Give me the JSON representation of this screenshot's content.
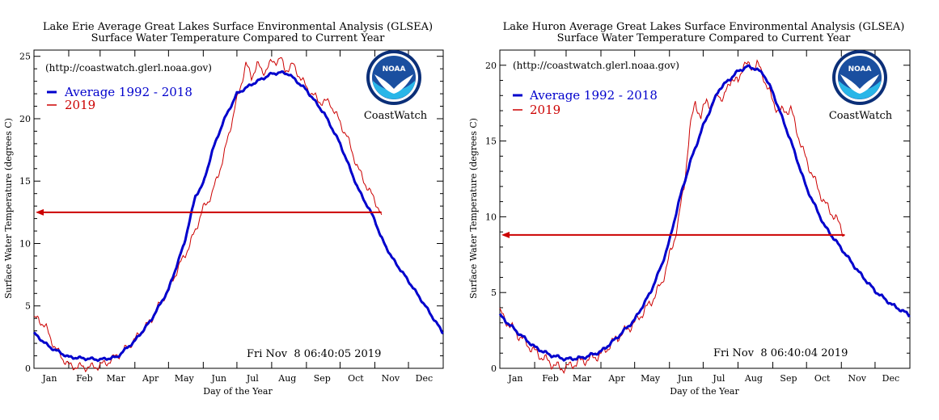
{
  "chart_data": [
    {
      "type": "line",
      "title": "Lake Erie Average Great Lakes Surface Environmental Analysis (GLSEA)",
      "subtitle": "Surface Water Temperature Compared to Current Year",
      "url": "(http://coastwatch.glerl.noaa.gov)",
      "xlabel": "Day of the Year",
      "ylabel": "Surface Water Temperature (degrees C)",
      "xlim": [
        1,
        366
      ],
      "ylim": [
        0,
        25.5
      ],
      "yticks": [
        0,
        5,
        10,
        15,
        20,
        25
      ],
      "ytick_labels": [
        "0",
        "5",
        "10",
        "15",
        "20",
        "25"
      ],
      "month_ticks": [
        1,
        32,
        60,
        91,
        121,
        152,
        182,
        213,
        244,
        274,
        305,
        335
      ],
      "month_labels": [
        "Jan",
        "Feb",
        "Mar",
        "Apr",
        "May",
        "Jun",
        "Jul",
        "Aug",
        "Sep",
        "Oct",
        "Nov",
        "Dec"
      ],
      "timestamp": "Fri Nov  8 06:40:05 2019",
      "logo_text": "NOAA",
      "logo_caption": "CoastWatch",
      "series": [
        {
          "name": "Average 1992 - 2018",
          "color": "#0000cc",
          "x": [
            1,
            15,
            32,
            45,
            60,
            75,
            91,
            105,
            121,
            135,
            145,
            152,
            160,
            170,
            182,
            196,
            213,
            221,
            228,
            244,
            260,
            274,
            290,
            305,
            310,
            320,
            335,
            350,
            366
          ],
          "y": [
            2.8,
            1.7,
            0.9,
            0.8,
            0.7,
            0.9,
            2.2,
            3.8,
            6.3,
            10.0,
            13.8,
            14.8,
            17.4,
            19.8,
            22.0,
            22.8,
            23.6,
            23.7,
            23.6,
            22.3,
            20.4,
            18.0,
            14.4,
            11.9,
            10.6,
            8.9,
            7.0,
            5.0,
            2.8
          ]
        },
        {
          "name": "2019",
          "color": "#cc0000",
          "x": [
            1,
            5,
            12,
            20,
            32,
            45,
            55,
            65,
            80,
            91,
            105,
            121,
            130,
            140,
            152,
            160,
            170,
            180,
            185,
            190,
            195,
            200,
            205,
            213,
            221,
            225,
            232,
            244,
            255,
            265,
            270,
            280,
            290,
            300,
            305,
            311
          ],
          "y": [
            3.9,
            4.0,
            3.2,
            1.6,
            0.2,
            0.1,
            0.1,
            0.4,
            1.3,
            2.3,
            3.8,
            6.4,
            8.1,
            9.9,
            12.8,
            14.0,
            16.9,
            20.8,
            22.5,
            24.4,
            23.3,
            24.4,
            23.7,
            24.5,
            24.8,
            23.9,
            24.3,
            22.5,
            21.4,
            21.3,
            20.4,
            18.6,
            16.0,
            14.2,
            13.5,
            12.3
          ]
        }
      ],
      "current_temp_arrow": {
        "value": 12.5,
        "day": 311
      }
    },
    {
      "type": "line",
      "title": "Lake Huron Average Great Lakes Surface Environmental Analysis (GLSEA)",
      "subtitle": "Surface Water Temperature Compared to Current Year",
      "url": "(http://coastwatch.glerl.noaa.gov)",
      "xlabel": "Day of the Year",
      "ylabel": "Surface Water Temperature (degrees C)",
      "xlim": [
        1,
        366
      ],
      "ylim": [
        0,
        21
      ],
      "yticks": [
        0,
        5,
        10,
        15,
        20
      ],
      "ytick_labels": [
        "0",
        "5",
        "10",
        "15",
        "20"
      ],
      "month_ticks": [
        1,
        32,
        60,
        91,
        121,
        152,
        182,
        213,
        244,
        274,
        305,
        335
      ],
      "month_labels": [
        "Jan",
        "Feb",
        "Mar",
        "Apr",
        "May",
        "Jun",
        "Jul",
        "Aug",
        "Sep",
        "Oct",
        "Nov",
        "Dec"
      ],
      "timestamp": "Fri Nov  8 06:40:04 2019",
      "logo_text": "NOAA",
      "logo_caption": "CoastWatch",
      "series": [
        {
          "name": "Average 1992 - 2018",
          "color": "#0000cc",
          "x": [
            1,
            15,
            32,
            45,
            60,
            75,
            91,
            105,
            121,
            135,
            145,
            152,
            160,
            170,
            182,
            196,
            213,
            221,
            228,
            236,
            244,
            260,
            274,
            290,
            305,
            320,
            335,
            350,
            366
          ],
          "y": [
            3.5,
            2.5,
            1.4,
            0.9,
            0.6,
            0.7,
            1.1,
            2.0,
            3.2,
            5.0,
            6.8,
            8.4,
            10.9,
            13.5,
            16.0,
            18.4,
            19.6,
            19.9,
            19.8,
            19.4,
            18.2,
            15.0,
            11.9,
            9.4,
            7.9,
            6.4,
            5.1,
            4.2,
            3.5
          ]
        },
        {
          "name": "2019",
          "color": "#cc0000",
          "x": [
            1,
            10,
            20,
            32,
            45,
            55,
            62,
            70,
            80,
            91,
            105,
            121,
            135,
            145,
            152,
            155,
            160,
            165,
            170,
            175,
            180,
            185,
            190,
            195,
            200,
            207,
            213,
            218,
            224,
            230,
            236,
            244,
            250,
            260,
            270,
            280,
            290,
            300,
            308
          ],
          "y": [
            3.7,
            2.8,
            2.0,
            1.1,
            0.4,
            0.0,
            0.1,
            0.4,
            0.6,
            0.9,
            2.0,
            3.0,
            4.3,
            5.6,
            7.4,
            8.1,
            9.8,
            12.0,
            15.7,
            17.6,
            16.5,
            17.8,
            17.1,
            18.2,
            17.7,
            19.2,
            18.8,
            20.2,
            19.8,
            20.1,
            19.2,
            17.6,
            16.9,
            17.1,
            14.5,
            12.6,
            10.9,
            9.9,
            8.8
          ]
        }
      ],
      "current_temp_arrow": {
        "value": 8.8,
        "day": 308
      }
    }
  ]
}
